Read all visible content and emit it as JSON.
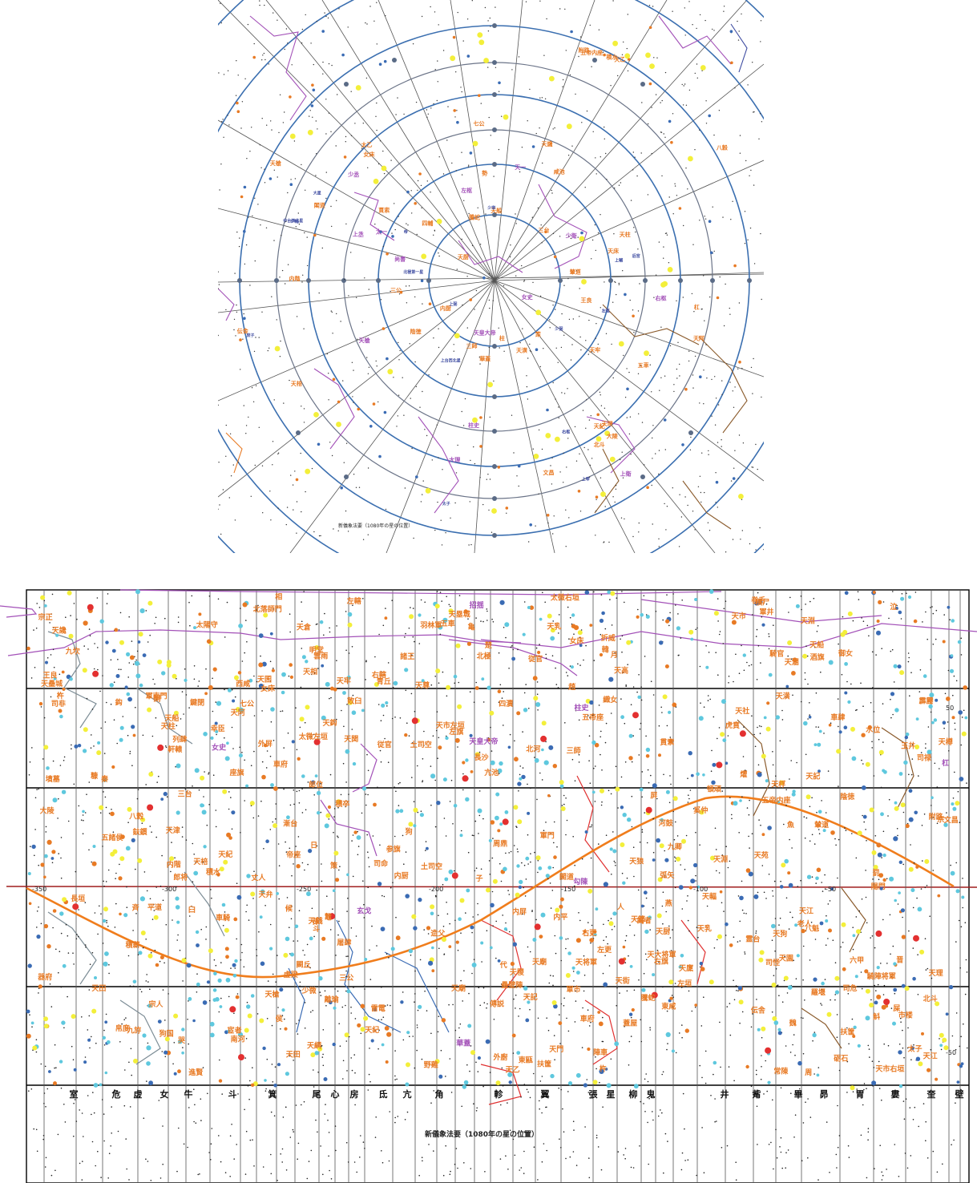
{
  "top_map": {
    "caption": "新儀象法要（1080年の星の位置）",
    "colors": {
      "ring": "#3b6fb0",
      "line": "#555555",
      "purple": "#a351b8",
      "brown": "#8a5a2b",
      "orange": "#e87a24",
      "blue": "#3c4aa0",
      "yellow": "#f3ef3a"
    },
    "labels_orange": [
      {
        "text": "天棓"
      },
      {
        "text": "天槍"
      },
      {
        "text": "天厨"
      },
      {
        "text": "天乙"
      },
      {
        "text": "太乙"
      },
      {
        "text": "陰徳"
      },
      {
        "text": "内厨"
      },
      {
        "text": "五帝内座"
      },
      {
        "text": "天柱"
      },
      {
        "text": "四輔"
      },
      {
        "text": "天理"
      },
      {
        "text": "北斗"
      },
      {
        "text": "天牢"
      },
      {
        "text": "文昌"
      },
      {
        "text": "三師"
      },
      {
        "text": "内階"
      },
      {
        "text": "天床"
      },
      {
        "text": "八穀"
      },
      {
        "text": "伝舎"
      },
      {
        "text": "天船"
      },
      {
        "text": "積水"
      },
      {
        "text": "大陵"
      },
      {
        "text": "天讒"
      },
      {
        "text": "五車"
      },
      {
        "text": "柱"
      },
      {
        "text": "咸池"
      },
      {
        "text": "天潢"
      },
      {
        "text": "王良"
      },
      {
        "text": "閣道"
      },
      {
        "text": "策"
      },
      {
        "text": "附路"
      },
      {
        "text": "華蓋"
      },
      {
        "text": "杠"
      },
      {
        "text": "輦道"
      },
      {
        "text": "三公"
      },
      {
        "text": "騰蛇"
      },
      {
        "text": "女床"
      },
      {
        "text": "天紀"
      },
      {
        "text": "七公"
      },
      {
        "text": "貫索"
      },
      {
        "text": "三台"
      },
      {
        "text": "勢"
      },
      {
        "text": "天阿"
      }
    ],
    "labels_purple": [
      {
        "text": "天皇大帝"
      },
      {
        "text": "女史"
      },
      {
        "text": "柱史"
      },
      {
        "text": "尚書"
      },
      {
        "text": "大理"
      },
      {
        "text": "天一"
      },
      {
        "text": "太一"
      },
      {
        "text": "少衛"
      },
      {
        "text": "上衛"
      },
      {
        "text": "少丞"
      },
      {
        "text": "上丞"
      },
      {
        "text": "天槍"
      },
      {
        "text": "右枢"
      },
      {
        "text": "左枢"
      }
    ],
    "labels_blue": [
      {
        "text": "上宰"
      },
      {
        "text": "少宰"
      },
      {
        "text": "上輔"
      },
      {
        "text": "少輔"
      },
      {
        "text": "少弼"
      },
      {
        "text": "上弼"
      },
      {
        "text": "左枢"
      },
      {
        "text": "右枢"
      },
      {
        "text": "大星"
      },
      {
        "text": "中台西北星"
      },
      {
        "text": "上台西北星"
      },
      {
        "text": "北極第一星"
      },
      {
        "text": "庶子"
      },
      {
        "text": "后宮"
      },
      {
        "text": "太子"
      },
      {
        "text": "帝"
      }
    ]
  },
  "bottom_map": {
    "caption": "新儀象法要（1080年の星の位置）",
    "axis_ticks": [
      {
        "text": "-350"
      },
      {
        "text": "-300"
      },
      {
        "text": "-250"
      },
      {
        "text": "-200"
      },
      {
        "text": "-150"
      },
      {
        "text": "-100"
      },
      {
        "text": "-50"
      }
    ],
    "dec_ticks": [
      {
        "text": "50"
      },
      {
        "text": "-50"
      }
    ],
    "lunar_mansions": [
      {
        "text": "室"
      },
      {
        "text": "危"
      },
      {
        "text": "虚"
      },
      {
        "text": "女"
      },
      {
        "text": "牛"
      },
      {
        "text": "斗"
      },
      {
        "text": "箕"
      },
      {
        "text": "尾"
      },
      {
        "text": "心"
      },
      {
        "text": "房"
      },
      {
        "text": "氐"
      },
      {
        "text": "亢"
      },
      {
        "text": "角"
      },
      {
        "text": "軫"
      },
      {
        "text": "翼"
      },
      {
        "text": "張"
      },
      {
        "text": "星"
      },
      {
        "text": "柳"
      },
      {
        "text": "鬼"
      },
      {
        "text": "井"
      },
      {
        "text": "觜"
      },
      {
        "text": "畢"
      },
      {
        "text": "昴"
      },
      {
        "text": "胃"
      },
      {
        "text": "婁"
      },
      {
        "text": "奎"
      },
      {
        "text": "壁"
      }
    ],
    "labels_orange": [
      {
        "text": "六甲"
      },
      {
        "text": "五帝内座"
      },
      {
        "text": "天柱"
      },
      {
        "text": "鈎"
      },
      {
        "text": "天厨"
      },
      {
        "text": "伝舎"
      },
      {
        "text": "造父"
      },
      {
        "text": "扶筐"
      },
      {
        "text": "天津"
      },
      {
        "text": "天棓"
      },
      {
        "text": "天紀"
      },
      {
        "text": "天市右垣"
      },
      {
        "text": "七公"
      },
      {
        "text": "貫索"
      },
      {
        "text": "女床"
      },
      {
        "text": "天理"
      },
      {
        "text": "北斗"
      },
      {
        "text": "天牢"
      },
      {
        "text": "三師"
      },
      {
        "text": "文昌"
      },
      {
        "text": "内階"
      },
      {
        "text": "三台"
      },
      {
        "text": "天船"
      },
      {
        "text": "積水"
      },
      {
        "text": "大陵"
      },
      {
        "text": "五車"
      },
      {
        "text": "天潢"
      },
      {
        "text": "天阿"
      },
      {
        "text": "天将軍"
      },
      {
        "text": "附路"
      },
      {
        "text": "八穀"
      },
      {
        "text": "天槍"
      },
      {
        "text": "左垣"
      },
      {
        "text": "陰徳"
      },
      {
        "text": "内厨"
      },
      {
        "text": "北極"
      },
      {
        "text": "天乙"
      },
      {
        "text": "相"
      },
      {
        "text": "太陽守"
      },
      {
        "text": "天尊"
      },
      {
        "text": "郎将"
      },
      {
        "text": "郎位"
      },
      {
        "text": "常陳"
      },
      {
        "text": "車府"
      },
      {
        "text": "天市左垣"
      },
      {
        "text": "天江"
      },
      {
        "text": "天淵"
      },
      {
        "text": "天田"
      },
      {
        "text": "天門"
      },
      {
        "text": "平道"
      },
      {
        "text": "長沙"
      },
      {
        "text": "左轄"
      },
      {
        "text": "右轄"
      },
      {
        "text": "青丘"
      },
      {
        "text": "器府"
      },
      {
        "text": "天廟"
      },
      {
        "text": "東甌"
      },
      {
        "text": "軍門"
      },
      {
        "text": "土司空"
      },
      {
        "text": "天社"
      },
      {
        "text": "老人"
      },
      {
        "text": "天稷"
      },
      {
        "text": "天狗"
      },
      {
        "text": "天記"
      },
      {
        "text": "外廚"
      },
      {
        "text": "爟"
      },
      {
        "text": "水位"
      },
      {
        "text": "四瀆"
      },
      {
        "text": "南河"
      },
      {
        "text": "北河"
      },
      {
        "text": "積薪"
      },
      {
        "text": "天樽"
      },
      {
        "text": "諸王"
      },
      {
        "text": "司怪"
      },
      {
        "text": "座旗"
      },
      {
        "text": "五諸侯"
      },
      {
        "text": "天関"
      },
      {
        "text": "参旗"
      },
      {
        "text": "九斿"
      },
      {
        "text": "天苑"
      },
      {
        "text": "天園"
      },
      {
        "text": "天廩"
      },
      {
        "text": "天囷"
      },
      {
        "text": "天倉"
      },
      {
        "text": "外屏"
      },
      {
        "text": "土司空"
      },
      {
        "text": "天溷"
      },
      {
        "text": "羽林軍"
      },
      {
        "text": "北落師門"
      },
      {
        "text": "敗臼"
      },
      {
        "text": "天銭"
      },
      {
        "text": "哭"
      },
      {
        "text": "泣"
      },
      {
        "text": "天塁城"
      },
      {
        "text": "離瑜"
      },
      {
        "text": "天田"
      },
      {
        "text": "九坎"
      },
      {
        "text": "羅堰"
      },
      {
        "text": "天淵"
      },
      {
        "text": "狗国"
      },
      {
        "text": "狗"
      },
      {
        "text": "鼈"
      },
      {
        "text": "杵"
      },
      {
        "text": "糠"
      },
      {
        "text": "亀"
      },
      {
        "text": "傅説"
      },
      {
        "text": "魚"
      },
      {
        "text": "天江"
      },
      {
        "text": "積卒"
      },
      {
        "text": "騎官"
      },
      {
        "text": "車騎"
      },
      {
        "text": "陣車"
      },
      {
        "text": "騎陣将軍"
      },
      {
        "text": "天輻"
      },
      {
        "text": "従官"
      },
      {
        "text": "鍵閉"
      },
      {
        "text": "罰"
      },
      {
        "text": "東咸"
      },
      {
        "text": "西咸"
      },
      {
        "text": "日"
      },
      {
        "text": "天乳"
      },
      {
        "text": "亢池"
      },
      {
        "text": "折威"
      },
      {
        "text": "頓頑"
      },
      {
        "text": "陽門"
      },
      {
        "text": "進賢"
      },
      {
        "text": "周鼎"
      },
      {
        "text": "明堂"
      },
      {
        "text": "霊台"
      },
      {
        "text": "少微"
      },
      {
        "text": "長垣"
      },
      {
        "text": "太微右垣"
      },
      {
        "text": "太微左垣"
      },
      {
        "text": "五帝座"
      },
      {
        "text": "三公"
      },
      {
        "text": "九卿"
      },
      {
        "text": "内屏"
      },
      {
        "text": "謁者"
      },
      {
        "text": "幸臣"
      },
      {
        "text": "太子"
      },
      {
        "text": "従官"
      },
      {
        "text": "虎賁"
      },
      {
        "text": "軒轅"
      },
      {
        "text": "御女"
      },
      {
        "text": "内平"
      },
      {
        "text": "酒旗"
      },
      {
        "text": "天相"
      },
      {
        "text": "天廟"
      },
      {
        "text": "天記"
      },
      {
        "text": "天狼"
      },
      {
        "text": "弧矢"
      },
      {
        "text": "軍市"
      },
      {
        "text": "野雞"
      },
      {
        "text": "孫"
      },
      {
        "text": "子"
      },
      {
        "text": "丈人"
      },
      {
        "text": "闕丘"
      },
      {
        "text": "厠"
      },
      {
        "text": "屎"
      },
      {
        "text": "玉井"
      },
      {
        "text": "軍井"
      },
      {
        "text": "屏"
      },
      {
        "text": "天節"
      },
      {
        "text": "天街"
      },
      {
        "text": "天高"
      },
      {
        "text": "砺石"
      },
      {
        "text": "月"
      },
      {
        "text": "巻舌"
      },
      {
        "text": "天讒"
      },
      {
        "text": "積尸"
      },
      {
        "text": "天船"
      },
      {
        "text": "左更"
      },
      {
        "text": "右更"
      },
      {
        "text": "天大将軍"
      },
      {
        "text": "軍南門"
      },
      {
        "text": "閣道"
      },
      {
        "text": "策"
      },
      {
        "text": "王良"
      },
      {
        "text": "騰蛇"
      },
      {
        "text": "雷電"
      },
      {
        "text": "霹靂"
      },
      {
        "text": "雲雨"
      },
      {
        "text": "壘壁陣"
      },
      {
        "text": "八魁"
      },
      {
        "text": "鈇鑕"
      },
      {
        "text": "天綱"
      },
      {
        "text": "墳墓"
      },
      {
        "text": "虚梁"
      },
      {
        "text": "蓋屋"
      },
      {
        "text": "人"
      },
      {
        "text": "杵"
      },
      {
        "text": "臼"
      },
      {
        "text": "車府"
      },
      {
        "text": "司命"
      },
      {
        "text": "司禄"
      },
      {
        "text": "司危"
      },
      {
        "text": "司非"
      },
      {
        "text": "天壘城"
      },
      {
        "text": "趙"
      },
      {
        "text": "周"
      },
      {
        "text": "秦"
      },
      {
        "text": "代"
      },
      {
        "text": "晋"
      },
      {
        "text": "韓"
      },
      {
        "text": "魏"
      },
      {
        "text": "楚"
      },
      {
        "text": "燕"
      },
      {
        "text": "斉"
      },
      {
        "text": "奚仲"
      },
      {
        "text": "天鈎"
      },
      {
        "text": "扶筐"
      },
      {
        "text": "天桴"
      },
      {
        "text": "河鼓"
      },
      {
        "text": "織女"
      },
      {
        "text": "漸台"
      },
      {
        "text": "輦道"
      },
      {
        "text": "左旗"
      },
      {
        "text": "右旗"
      },
      {
        "text": "天弁"
      },
      {
        "text": "市楼"
      },
      {
        "text": "宗正"
      },
      {
        "text": "宗人"
      },
      {
        "text": "宗"
      },
      {
        "text": "帛度"
      },
      {
        "text": "屠肆"
      },
      {
        "text": "候"
      },
      {
        "text": "宦者"
      },
      {
        "text": "斛"
      },
      {
        "text": "斗"
      },
      {
        "text": "列肆"
      },
      {
        "text": "車肆"
      },
      {
        "text": "帝座"
      },
      {
        "text": "天紀"
      },
      {
        "text": "女床"
      },
      {
        "text": "天乳"
      },
      {
        "text": "天市"
      },
      {
        "text": "侯"
      }
    ],
    "labels_purple": [
      {
        "text": "天皇大帝"
      },
      {
        "text": "柱史"
      },
      {
        "text": "女史"
      },
      {
        "text": "玄戈"
      },
      {
        "text": "招揺"
      },
      {
        "text": "華蓋"
      },
      {
        "text": "杠"
      },
      {
        "text": "勾陳"
      }
    ]
  }
}
